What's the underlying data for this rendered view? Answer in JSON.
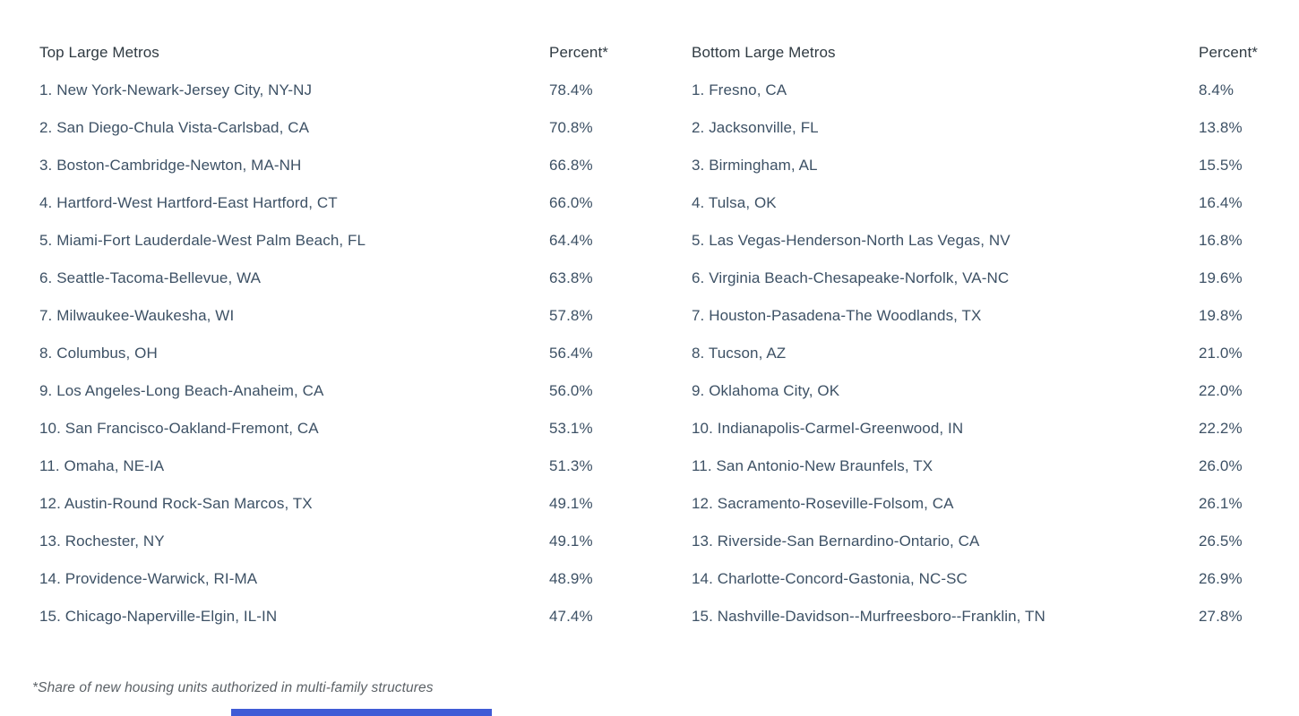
{
  "colors": {
    "background": "#ffffff",
    "header_text": "#2f3a42",
    "row_text": "#3d5165",
    "footnote_text": "#5c6267",
    "accent_bar": "#3f5bd6"
  },
  "footnote": "*Share of new housing units authorized in multi-family structures",
  "tables": [
    {
      "header": {
        "name": "Top Large Metros",
        "percent": "Percent*"
      },
      "rows": [
        {
          "label": "1. New York-Newark-Jersey City, NY-NJ",
          "percent": "78.4%"
        },
        {
          "label": "2. San Diego-Chula Vista-Carlsbad, CA",
          "percent": "70.8%"
        },
        {
          "label": "3. Boston-Cambridge-Newton, MA-NH",
          "percent": "66.8%"
        },
        {
          "label": "4. Hartford-West Hartford-East Hartford, CT",
          "percent": "66.0%"
        },
        {
          "label": "5. Miami-Fort Lauderdale-West Palm Beach, FL",
          "percent": "64.4%"
        },
        {
          "label": "6. Seattle-Tacoma-Bellevue, WA",
          "percent": "63.8%"
        },
        {
          "label": "7. Milwaukee-Waukesha, WI",
          "percent": "57.8%"
        },
        {
          "label": "8. Columbus, OH",
          "percent": "56.4%"
        },
        {
          "label": "9. Los Angeles-Long Beach-Anaheim, CA",
          "percent": "56.0%"
        },
        {
          "label": "10. San Francisco-Oakland-Fremont, CA",
          "percent": "53.1%"
        },
        {
          "label": "11. Omaha, NE-IA",
          "percent": "51.3%"
        },
        {
          "label": "12. Austin-Round Rock-San Marcos, TX",
          "percent": "49.1%"
        },
        {
          "label": "13. Rochester, NY",
          "percent": "49.1%"
        },
        {
          "label": "14. Providence-Warwick, RI-MA",
          "percent": "48.9%"
        },
        {
          "label": "15. Chicago-Naperville-Elgin, IL-IN",
          "percent": "47.4%"
        }
      ]
    },
    {
      "header": {
        "name": "Bottom Large Metros",
        "percent": "Percent*"
      },
      "rows": [
        {
          "label": "1. Fresno, CA",
          "percent": "8.4%"
        },
        {
          "label": "2. Jacksonville, FL",
          "percent": "13.8%"
        },
        {
          "label": "3. Birmingham, AL",
          "percent": "15.5%"
        },
        {
          "label": "4. Tulsa, OK",
          "percent": "16.4%"
        },
        {
          "label": "5. Las Vegas-Henderson-North Las Vegas, NV",
          "percent": "16.8%"
        },
        {
          "label": "6. Virginia Beach-Chesapeake-Norfolk, VA-NC",
          "percent": "19.6%"
        },
        {
          "label": "7. Houston-Pasadena-The Woodlands, TX",
          "percent": "19.8%"
        },
        {
          "label": "8. Tucson, AZ",
          "percent": "21.0%"
        },
        {
          "label": "9. Oklahoma City, OK",
          "percent": "22.0%"
        },
        {
          "label": "10. Indianapolis-Carmel-Greenwood, IN",
          "percent": "22.2%"
        },
        {
          "label": "11. San Antonio-New Braunfels, TX",
          "percent": "26.0%"
        },
        {
          "label": "12. Sacramento-Roseville-Folsom, CA",
          "percent": "26.1%"
        },
        {
          "label": "13. Riverside-San Bernardino-Ontario, CA",
          "percent": "26.5%"
        },
        {
          "label": "14. Charlotte-Concord-Gastonia, NC-SC",
          "percent": "26.9%"
        },
        {
          "label": "15. Nashville-Davidson--Murfreesboro--Franklin, TN",
          "percent": "27.8%"
        }
      ]
    }
  ],
  "chart_data": {
    "type": "table",
    "title": "Share of new housing units authorized in multi-family structures",
    "tables": [
      {
        "name": "Top Large Metros",
        "columns": [
          "Metro",
          "Percent"
        ],
        "rows": [
          [
            "New York-Newark-Jersey City, NY-NJ",
            78.4
          ],
          [
            "San Diego-Chula Vista-Carlsbad, CA",
            70.8
          ],
          [
            "Boston-Cambridge-Newton, MA-NH",
            66.8
          ],
          [
            "Hartford-West Hartford-East Hartford, CT",
            66.0
          ],
          [
            "Miami-Fort Lauderdale-West Palm Beach, FL",
            64.4
          ],
          [
            "Seattle-Tacoma-Bellevue, WA",
            63.8
          ],
          [
            "Milwaukee-Waukesha, WI",
            57.8
          ],
          [
            "Columbus, OH",
            56.4
          ],
          [
            "Los Angeles-Long Beach-Anaheim, CA",
            56.0
          ],
          [
            "San Francisco-Oakland-Fremont, CA",
            53.1
          ],
          [
            "Omaha, NE-IA",
            51.3
          ],
          [
            "Austin-Round Rock-San Marcos, TX",
            49.1
          ],
          [
            "Rochester, NY",
            49.1
          ],
          [
            "Providence-Warwick, RI-MA",
            48.9
          ],
          [
            "Chicago-Naperville-Elgin, IL-IN",
            47.4
          ]
        ]
      },
      {
        "name": "Bottom Large Metros",
        "columns": [
          "Metro",
          "Percent"
        ],
        "rows": [
          [
            "Fresno, CA",
            8.4
          ],
          [
            "Jacksonville, FL",
            13.8
          ],
          [
            "Birmingham, AL",
            15.5
          ],
          [
            "Tulsa, OK",
            16.4
          ],
          [
            "Las Vegas-Henderson-North Las Vegas, NV",
            16.8
          ],
          [
            "Virginia Beach-Chesapeake-Norfolk, VA-NC",
            19.6
          ],
          [
            "Houston-Pasadena-The Woodlands, TX",
            19.8
          ],
          [
            "Tucson, AZ",
            21.0
          ],
          [
            "Oklahoma City, OK",
            22.0
          ],
          [
            "Indianapolis-Carmel-Greenwood, IN",
            22.2
          ],
          [
            "San Antonio-New Braunfels, TX",
            26.0
          ],
          [
            "Sacramento-Roseville-Folsom, CA",
            26.1
          ],
          [
            "Riverside-San Bernardino-Ontario, CA",
            26.5
          ],
          [
            "Charlotte-Concord-Gastonia, NC-SC",
            26.9
          ],
          [
            "Nashville-Davidson--Murfreesboro--Franklin, TN",
            27.8
          ]
        ]
      }
    ]
  }
}
